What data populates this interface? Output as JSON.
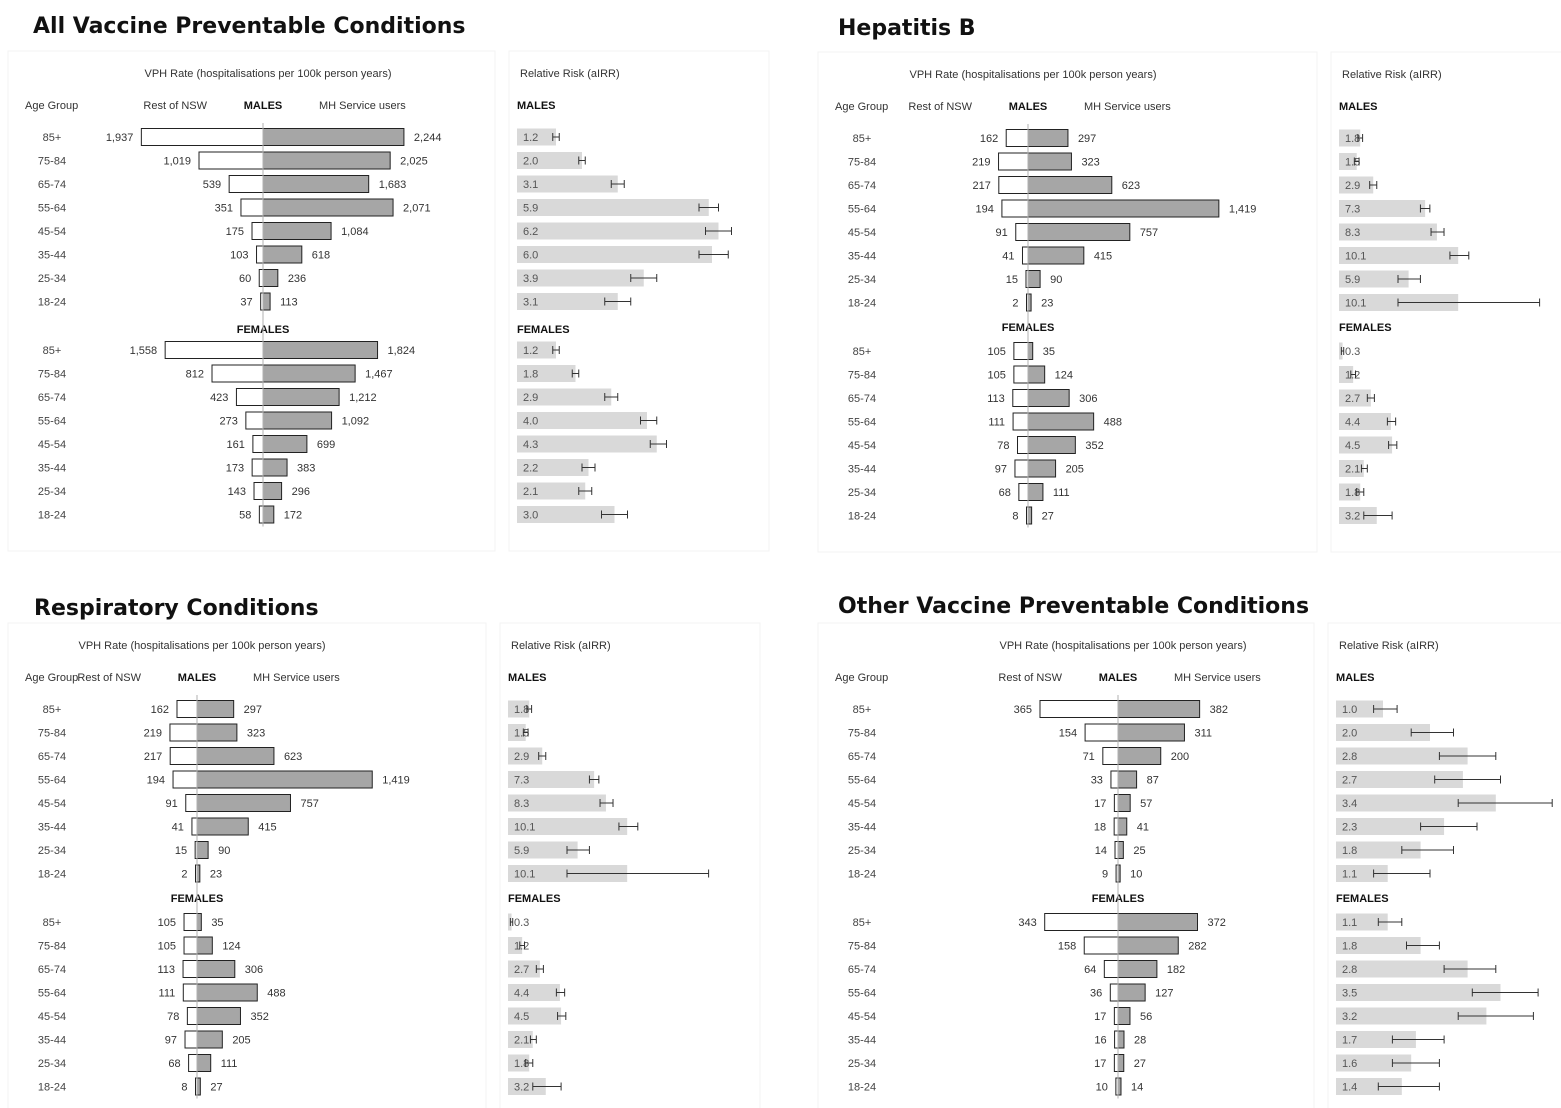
{
  "common": {
    "rate_header": "VPH Rate (hospitalisations per 100k person years)",
    "rr_header": "Relative Risk (aIRR)",
    "age_group_label": "Age Group",
    "rest_label": "Rest of NSW",
    "mh_label": "MH Service users",
    "males_label": "MALES",
    "females_label": "FEMALES",
    "age_groups": [
      "85+",
      "75-84",
      "65-74",
      "55-64",
      "45-54",
      "35-44",
      "25-34",
      "18-24"
    ]
  },
  "colors": {
    "mh_bar": "#a6a6a6",
    "rest_bar": "#ffffff",
    "rr_bar": "#d9d9d9",
    "bar_stroke": "#222222"
  },
  "chart_data": [
    {
      "type": "bar",
      "title": "All Vaccine Preventable Conditions",
      "males": {
        "rest": [
          "1,937",
          "1,019",
          "539",
          "351",
          "175",
          "103",
          "60",
          "37"
        ],
        "mh": [
          "2,244",
          "2,025",
          "1,683",
          "2,071",
          "1,084",
          "618",
          "236",
          "113"
        ],
        "rr": [
          "1.2",
          "2.0",
          "3.1",
          "5.9",
          "6.2",
          "6.0",
          "3.9",
          "3.1"
        ],
        "ci": [
          [
            1.1,
            1.3
          ],
          [
            1.9,
            2.1
          ],
          [
            2.9,
            3.3
          ],
          [
            5.6,
            6.2
          ],
          [
            5.8,
            6.6
          ],
          [
            5.6,
            6.5
          ],
          [
            3.5,
            4.3
          ],
          [
            2.7,
            3.5
          ]
        ]
      },
      "females": {
        "rest": [
          "1,558",
          "812",
          "423",
          "273",
          "161",
          "173",
          "143",
          "58"
        ],
        "mh": [
          "1,824",
          "1,467",
          "1,212",
          "1,092",
          "699",
          "383",
          "296",
          "172"
        ],
        "rr": [
          "1.2",
          "1.8",
          "2.9",
          "4.0",
          "4.3",
          "2.2",
          "2.1",
          "3.0"
        ],
        "ci": [
          [
            1.1,
            1.3
          ],
          [
            1.7,
            1.9
          ],
          [
            2.7,
            3.1
          ],
          [
            3.8,
            4.3
          ],
          [
            4.1,
            4.6
          ],
          [
            2.0,
            2.4
          ],
          [
            1.9,
            2.3
          ],
          [
            2.6,
            3.4
          ]
        ]
      }
    },
    {
      "type": "bar",
      "title": "Hepatitis B",
      "males": {
        "rest": [
          "162",
          "219",
          "217",
          "194",
          "91",
          "41",
          "15",
          "2"
        ],
        "mh": [
          "297",
          "323",
          "623",
          "1,419",
          "757",
          "415",
          "90",
          "23"
        ],
        "rr": [
          "1.8",
          "1.5",
          "2.9",
          "7.3",
          "8.3",
          "10.1",
          "5.9",
          "10.1"
        ],
        "ci": [
          [
            1.6,
            2.0
          ],
          [
            1.3,
            1.7
          ],
          [
            2.6,
            3.2
          ],
          [
            6.9,
            7.7
          ],
          [
            7.8,
            8.9
          ],
          [
            9.4,
            11.0
          ],
          [
            5.0,
            6.9
          ],
          [
            5.0,
            17.0
          ]
        ]
      },
      "females": {
        "rest": [
          "105",
          "105",
          "113",
          "111",
          "78",
          "97",
          "68",
          "8"
        ],
        "mh": [
          "35",
          "124",
          "306",
          "488",
          "352",
          "205",
          "111",
          "27"
        ],
        "rr": [
          "0.3",
          "1.2",
          "2.7",
          "4.4",
          "4.5",
          "2.1",
          "1.8",
          "3.2"
        ],
        "ci": [
          [
            0.2,
            0.4
          ],
          [
            1.0,
            1.4
          ],
          [
            2.4,
            3.0
          ],
          [
            4.1,
            4.8
          ],
          [
            4.2,
            4.9
          ],
          [
            1.9,
            2.4
          ],
          [
            1.5,
            2.1
          ],
          [
            2.1,
            4.5
          ]
        ]
      }
    },
    {
      "type": "bar",
      "title": "Respiratory Conditions",
      "males": {
        "rest": [
          "162",
          "219",
          "217",
          "194",
          "91",
          "41",
          "15",
          "2"
        ],
        "mh": [
          "297",
          "323",
          "623",
          "1,419",
          "757",
          "415",
          "90",
          "23"
        ],
        "rr": [
          "1.8",
          "1.5",
          "2.9",
          "7.3",
          "8.3",
          "10.1",
          "5.9",
          "10.1"
        ],
        "ci": [
          [
            1.6,
            2.0
          ],
          [
            1.3,
            1.7
          ],
          [
            2.6,
            3.2
          ],
          [
            6.9,
            7.7
          ],
          [
            7.8,
            8.9
          ],
          [
            9.4,
            11.0
          ],
          [
            5.0,
            6.9
          ],
          [
            5.0,
            17.0
          ]
        ]
      },
      "females": {
        "rest": [
          "105",
          "105",
          "113",
          "111",
          "78",
          "97",
          "68",
          "8"
        ],
        "mh": [
          "35",
          "124",
          "306",
          "488",
          "352",
          "205",
          "111",
          "27"
        ],
        "rr": [
          "0.3",
          "1.2",
          "2.7",
          "4.4",
          "4.5",
          "2.1",
          "1.8",
          "3.2"
        ],
        "ci": [
          [
            0.2,
            0.4
          ],
          [
            1.0,
            1.4
          ],
          [
            2.4,
            3.0
          ],
          [
            4.1,
            4.8
          ],
          [
            4.2,
            4.9
          ],
          [
            1.9,
            2.4
          ],
          [
            1.5,
            2.1
          ],
          [
            2.1,
            4.5
          ]
        ]
      }
    },
    {
      "type": "bar",
      "title": "Other Vaccine Preventable Conditions",
      "males": {
        "rest": [
          "365",
          "154",
          "71",
          "33",
          "17",
          "18",
          "14",
          "9"
        ],
        "mh": [
          "382",
          "311",
          "200",
          "87",
          "57",
          "41",
          "25",
          "10"
        ],
        "rr": [
          "1.0",
          "2.0",
          "2.8",
          "2.7",
          "3.4",
          "2.3",
          "1.8",
          "1.1"
        ],
        "ci": [
          [
            0.8,
            1.3
          ],
          [
            1.6,
            2.5
          ],
          [
            2.2,
            3.4
          ],
          [
            2.1,
            3.5
          ],
          [
            2.6,
            4.6
          ],
          [
            1.8,
            3.0
          ],
          [
            1.4,
            2.5
          ],
          [
            0.8,
            2.0
          ]
        ]
      },
      "females": {
        "rest": [
          "343",
          "158",
          "64",
          "36",
          "17",
          "16",
          "17",
          "10"
        ],
        "mh": [
          "372",
          "282",
          "182",
          "127",
          "56",
          "28",
          "27",
          "14"
        ],
        "rr": [
          "1.1",
          "1.8",
          "2.8",
          "3.5",
          "3.2",
          "1.7",
          "1.6",
          "1.4"
        ],
        "ci": [
          [
            0.9,
            1.4
          ],
          [
            1.5,
            2.2
          ],
          [
            2.3,
            3.4
          ],
          [
            2.9,
            4.3
          ],
          [
            2.6,
            4.2
          ],
          [
            1.2,
            2.3
          ],
          [
            1.2,
            2.2
          ],
          [
            0.9,
            2.2
          ]
        ]
      }
    }
  ]
}
